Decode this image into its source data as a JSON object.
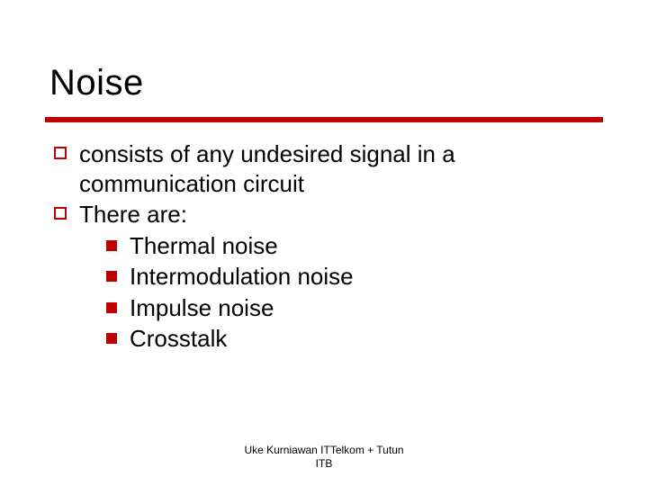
{
  "colors": {
    "accent": "#c00000",
    "text": "#000000",
    "background": "#ffffff"
  },
  "typography": {
    "title_fontsize_pt": 40,
    "body_fontsize_pt": 26,
    "footer_fontsize_pt": 12,
    "font_family": "Verdana"
  },
  "title": "Noise",
  "bullets": [
    {
      "text": "consists of any undesired signal in a communication circuit",
      "marker": "hollow-square",
      "children": []
    },
    {
      "text": "There are:",
      "marker": "hollow-square",
      "children": [
        {
          "text": "Thermal noise",
          "marker": "filled-square"
        },
        {
          "text": "Intermodulation noise",
          "marker": "filled-square"
        },
        {
          "text": "Impulse noise",
          "marker": "filled-square"
        },
        {
          "text": "Crosstalk",
          "marker": "filled-square"
        }
      ]
    }
  ],
  "footer_line1": "Uke Kurniawan ITTelkom + Tutun",
  "footer_line2": "ITB"
}
